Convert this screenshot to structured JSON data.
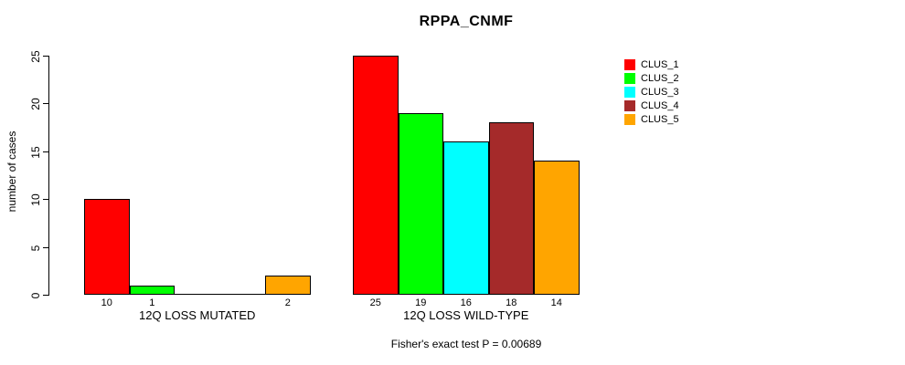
{
  "chart_data": {
    "type": "bar",
    "title": "RPPA_CNMF",
    "subtitle": "Fisher's exact test P = 0.00689",
    "ylabel": "number of cases",
    "xlabel": "",
    "ylim": [
      0,
      25
    ],
    "y_ticks": [
      "0",
      "5",
      "10",
      "15",
      "20",
      "25"
    ],
    "y_tick_values": [
      0,
      5,
      10,
      15,
      20,
      25
    ],
    "grid": false,
    "legend_position": "right",
    "series": [
      {
        "name": "CLUS_1",
        "color": "#ff0000"
      },
      {
        "name": "CLUS_2",
        "color": "#00ff00"
      },
      {
        "name": "CLUS_3",
        "color": "#00ffff"
      },
      {
        "name": "CLUS_4",
        "color": "#a52a2a"
      },
      {
        "name": "CLUS_5",
        "color": "#ffa500"
      }
    ],
    "categories": [
      "12Q LOSS MUTATED",
      "12Q LOSS WILD-TYPE"
    ],
    "groups": [
      {
        "label": "12Q LOSS MUTATED",
        "values": [
          10,
          1,
          0,
          0,
          2
        ],
        "bar_labels": [
          "10",
          "1",
          "",
          "",
          "2"
        ]
      },
      {
        "label": "12Q LOSS WILD-TYPE",
        "values": [
          25,
          19,
          16,
          18,
          14
        ],
        "bar_labels": [
          "25",
          "19",
          "16",
          "18",
          "14"
        ]
      }
    ]
  }
}
